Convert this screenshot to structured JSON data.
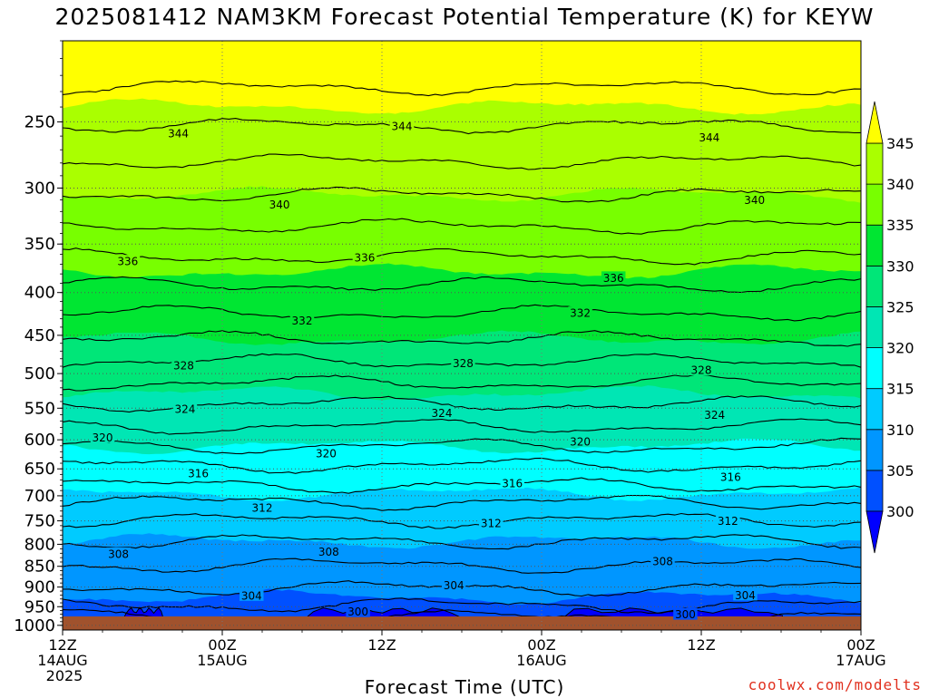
{
  "title": "2025081412 NAM3KM Forecast Potential Temperature (K) for KEYW",
  "xlabel": "Forecast Time (UTC)",
  "credit": "coolwx.com/modelts",
  "colors": {
    "ground": "#a0522d",
    "contour": "#000000",
    "bands": [
      "#0000ff",
      "#0050ff",
      "#0096ff",
      "#00cbff",
      "#00ffff",
      "#00e6b4",
      "#00e678",
      "#00e632",
      "#78ff00",
      "#aaff00",
      "#ffff00"
    ]
  },
  "chart_data": {
    "type": "heatmap",
    "title": "2025081412 NAM3KM Forecast Potential Temperature (K) for KEYW",
    "xlabel": "Forecast Time (UTC)",
    "ylabel": "",
    "x_ticks": [
      {
        "hours": 0,
        "label": [
          "12Z",
          "14AUG",
          "2025"
        ]
      },
      {
        "hours": 12,
        "label": [
          "00Z",
          "15AUG"
        ]
      },
      {
        "hours": 24,
        "label": [
          "12Z"
        ]
      },
      {
        "hours": 36,
        "label": [
          "00Z",
          "16AUG"
        ]
      },
      {
        "hours": 48,
        "label": [
          "12Z"
        ]
      },
      {
        "hours": 60,
        "label": [
          "00Z",
          "17AUG"
        ]
      }
    ],
    "xlim": [
      0,
      60
    ],
    "y_ticks": [
      250,
      300,
      350,
      400,
      450,
      500,
      550,
      600,
      650,
      700,
      750,
      800,
      850,
      900,
      950,
      1000
    ],
    "ylim": [
      200,
      1013
    ],
    "y_scale": "log",
    "grid": true,
    "colorbar": {
      "levels": [
        300,
        305,
        310,
        315,
        320,
        325,
        330,
        335,
        340,
        345
      ],
      "labels": [
        "300",
        "305",
        "310",
        "315",
        "320",
        "325",
        "330",
        "335",
        "340",
        "345"
      ],
      "extend": "both"
    },
    "theta_profile": {
      "pressure": [
        1013,
        1000,
        975,
        950,
        925,
        900,
        875,
        850,
        825,
        800,
        775,
        750,
        725,
        700,
        675,
        650,
        625,
        600,
        575,
        550,
        525,
        500,
        475,
        450,
        425,
        400,
        375,
        350,
        325,
        300,
        275,
        250,
        225,
        200
      ],
      "theta": [
        299.5,
        300.5,
        302.2,
        303.8,
        305.0,
        306.1,
        307.0,
        307.9,
        308.8,
        309.7,
        310.8,
        311.9,
        313.3,
        314.7,
        316.3,
        317.6,
        319.2,
        320.6,
        322.2,
        323.6,
        325.2,
        326.9,
        328.6,
        330.3,
        331.9,
        333.4,
        335.2,
        336.8,
        338.6,
        340.4,
        342.3,
        344.2,
        346.2,
        348.5
      ]
    },
    "contour_levels": [
      300,
      302,
      304,
      306,
      308,
      310,
      312,
      314,
      316,
      318,
      320,
      322,
      324,
      326,
      328,
      330,
      332,
      334,
      336,
      338,
      340,
      342,
      344,
      346
    ],
    "contour_labels": [
      {
        "value": "344",
        "hours": 8.7,
        "pressure": 258
      },
      {
        "value": "344",
        "hours": 25.5,
        "pressure": 253
      },
      {
        "value": "344",
        "hours": 48.6,
        "pressure": 261
      },
      {
        "value": "340",
        "hours": 16.3,
        "pressure": 314
      },
      {
        "value": "340",
        "hours": 52.0,
        "pressure": 310
      },
      {
        "value": "336",
        "hours": 4.9,
        "pressure": 367
      },
      {
        "value": "336",
        "hours": 22.7,
        "pressure": 363
      },
      {
        "value": "336",
        "hours": 41.4,
        "pressure": 384
      },
      {
        "value": "332",
        "hours": 18.0,
        "pressure": 432
      },
      {
        "value": "332",
        "hours": 38.9,
        "pressure": 423
      },
      {
        "value": "328",
        "hours": 9.1,
        "pressure": 489
      },
      {
        "value": "328",
        "hours": 30.1,
        "pressure": 486
      },
      {
        "value": "328",
        "hours": 48.0,
        "pressure": 495
      },
      {
        "value": "324",
        "hours": 9.2,
        "pressure": 551
      },
      {
        "value": "324",
        "hours": 28.5,
        "pressure": 557
      },
      {
        "value": "324",
        "hours": 49.0,
        "pressure": 560
      },
      {
        "value": "320",
        "hours": 3.0,
        "pressure": 596
      },
      {
        "value": "320",
        "hours": 19.8,
        "pressure": 623
      },
      {
        "value": "320",
        "hours": 38.9,
        "pressure": 603
      },
      {
        "value": "316",
        "hours": 10.2,
        "pressure": 658
      },
      {
        "value": "316",
        "hours": 33.8,
        "pressure": 676
      },
      {
        "value": "316",
        "hours": 50.2,
        "pressure": 664
      },
      {
        "value": "312",
        "hours": 15.0,
        "pressure": 723
      },
      {
        "value": "312",
        "hours": 32.2,
        "pressure": 755
      },
      {
        "value": "312",
        "hours": 50.0,
        "pressure": 750
      },
      {
        "value": "308",
        "hours": 4.2,
        "pressure": 821
      },
      {
        "value": "308",
        "hours": 20.0,
        "pressure": 816
      },
      {
        "value": "308",
        "hours": 45.1,
        "pressure": 838
      },
      {
        "value": "304",
        "hours": 14.2,
        "pressure": 921
      },
      {
        "value": "304",
        "hours": 29.4,
        "pressure": 895
      },
      {
        "value": "304",
        "hours": 51.3,
        "pressure": 920
      },
      {
        "value": "300",
        "hours": 22.2,
        "pressure": 963
      },
      {
        "value": "300",
        "hours": 46.8,
        "pressure": 970
      }
    ],
    "cold_pockets_below_300": [
      {
        "start_hours": 4.6,
        "end_hours": 7.6
      },
      {
        "start_hours": 18.1,
        "end_hours": 30.0
      },
      {
        "start_hours": 37.4,
        "end_hours": 54.1
      }
    ]
  }
}
